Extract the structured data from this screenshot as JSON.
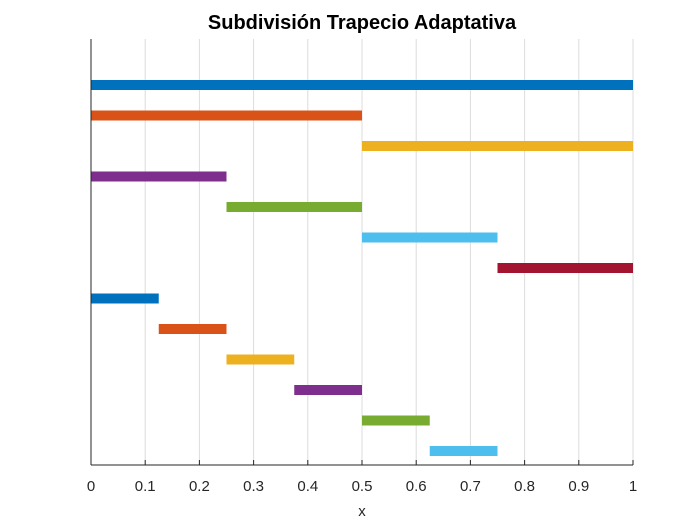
{
  "chart_data": {
    "type": "bar",
    "orientation": "horizontal-segments",
    "title": "Subdivisión Trapecio Adaptativa",
    "xlabel": "x",
    "ylabel": "",
    "xlim": [
      0,
      1
    ],
    "xticks": [
      0,
      0.1,
      0.2,
      0.3,
      0.4,
      0.5,
      0.6,
      0.7,
      0.8,
      0.9,
      1
    ],
    "xtick_labels": [
      "0",
      "0.1",
      "0.2",
      "0.3",
      "0.4",
      "0.5",
      "0.6",
      "0.7",
      "0.8",
      "0.9",
      "1"
    ],
    "grid": "x-vertical",
    "legend": "none",
    "segments": [
      {
        "start": 0,
        "end": 1,
        "color": "#0072BD"
      },
      {
        "start": 0,
        "end": 0.5,
        "color": "#D95319"
      },
      {
        "start": 0.5,
        "end": 1,
        "color": "#EDB120"
      },
      {
        "start": 0,
        "end": 0.25,
        "color": "#7E2F8E"
      },
      {
        "start": 0.25,
        "end": 0.5,
        "color": "#77AC30"
      },
      {
        "start": 0.5,
        "end": 0.75,
        "color": "#4DBEEE"
      },
      {
        "start": 0.75,
        "end": 1,
        "color": "#A2142F"
      },
      {
        "start": 0,
        "end": 0.125,
        "color": "#0072BD"
      },
      {
        "start": 0.125,
        "end": 0.25,
        "color": "#D95319"
      },
      {
        "start": 0.25,
        "end": 0.375,
        "color": "#EDB120"
      },
      {
        "start": 0.375,
        "end": 0.5,
        "color": "#7E2F8E"
      },
      {
        "start": 0.5,
        "end": 0.625,
        "color": "#77AC30"
      },
      {
        "start": 0.625,
        "end": 0.75,
        "color": "#4DBEEE"
      }
    ]
  }
}
